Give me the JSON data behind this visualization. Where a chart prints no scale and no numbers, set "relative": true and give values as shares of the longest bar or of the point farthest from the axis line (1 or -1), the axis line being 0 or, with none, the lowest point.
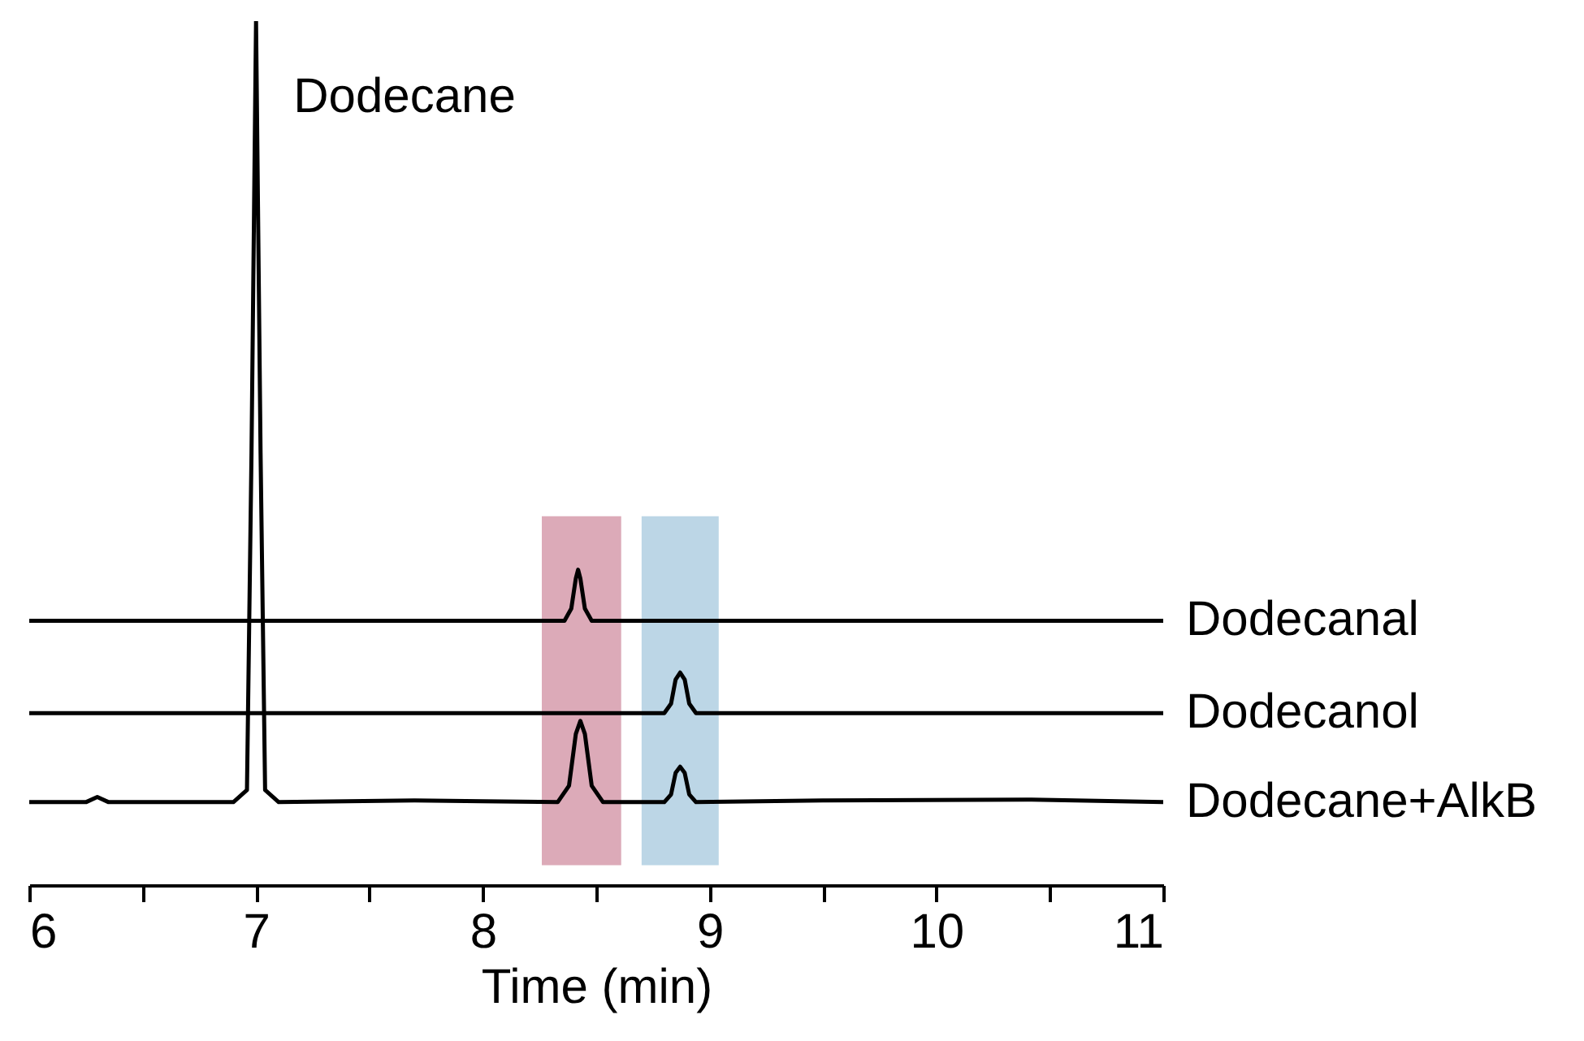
{
  "chart_data": {
    "type": "line",
    "relative": true,
    "xlabel": "Time (min)",
    "xlim": [
      6,
      11
    ],
    "xticks": [
      6,
      {
        "value": 6.5,
        "label": null
      },
      7,
      {
        "value": 7.5,
        "label": null
      },
      8,
      {
        "value": 8.5,
        "label": null
      },
      9,
      {
        "value": 9.5,
        "label": null
      },
      10,
      {
        "value": 10.5,
        "label": null
      },
      11
    ],
    "tick_labels": "x",
    "annotations": [
      {
        "text": "Dodecane",
        "x": 7.0,
        "y": 1.0
      }
    ],
    "bands": [
      {
        "axis": "x",
        "from": 8.26,
        "to": 8.61,
        "color": "#dcaab8"
      },
      {
        "axis": "x",
        "from": 8.7,
        "to": 9.04,
        "color": "#bcd6e6"
      }
    ],
    "series": [
      {
        "name": "Dodecanal",
        "color": "#000000",
        "x": [
          6,
          8.36,
          8.39,
          8.41,
          8.42,
          8.43,
          8.45,
          8.48,
          11
        ],
        "values": [
          0.306,
          0.306,
          0.32,
          0.355,
          0.365,
          0.355,
          0.32,
          0.306,
          0.306
        ]
      },
      {
        "name": "Dodecanol",
        "color": "#000000",
        "x": [
          6,
          8.8,
          8.83,
          8.85,
          8.87,
          8.89,
          8.91,
          8.94,
          11
        ],
        "values": [
          0.199,
          0.199,
          0.21,
          0.238,
          0.246,
          0.238,
          0.21,
          0.199,
          0.199
        ]
      },
      {
        "name": "Dodecane+AlkB",
        "color": "#000000",
        "x": [
          6,
          6.25,
          6.3,
          6.35,
          6.9,
          6.96,
          6.98,
          7.0,
          7.02,
          7.04,
          7.1,
          7.7,
          8.0,
          8.33,
          8.38,
          8.41,
          8.43,
          8.45,
          8.48,
          8.53,
          8.8,
          8.83,
          8.85,
          8.87,
          8.89,
          8.91,
          8.94,
          9.5,
          10.4,
          11
        ],
        "values": [
          0.096,
          0.096,
          0.102,
          0.096,
          0.096,
          0.11,
          0.5,
          1.0,
          0.5,
          0.11,
          0.096,
          0.098,
          0.097,
          0.096,
          0.115,
          0.175,
          0.19,
          0.175,
          0.115,
          0.096,
          0.096,
          0.105,
          0.13,
          0.137,
          0.13,
          0.105,
          0.096,
          0.098,
          0.099,
          0.096
        ]
      }
    ]
  }
}
